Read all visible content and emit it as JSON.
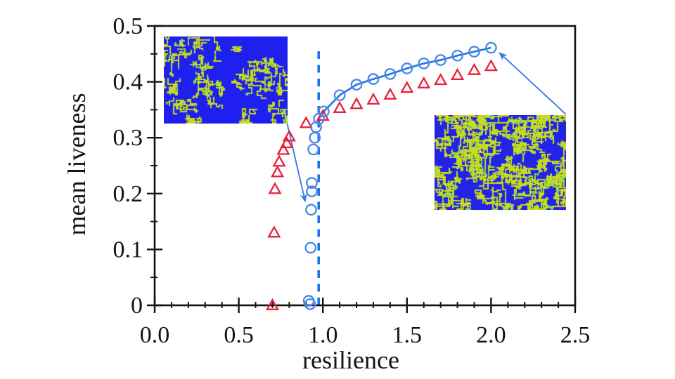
{
  "chart_data": {
    "type": "scatter",
    "title": "",
    "xlabel": "resilience",
    "ylabel": "mean liveness",
    "xlim": [
      0,
      2.5
    ],
    "ylim": [
      0,
      0.5
    ],
    "x_tick_values": [
      0,
      0.5,
      1.0,
      1.5,
      2.0,
      2.5
    ],
    "x_tick_labels": [
      "0.0",
      "0.5",
      "1.0",
      "1.5",
      "2.0",
      "2.5"
    ],
    "x_minor_tick_step": 0.1,
    "y_tick_values": [
      0,
      0.1,
      0.2,
      0.3,
      0.4,
      0.5
    ],
    "y_tick_labels": [
      "0",
      "0.1",
      "0.2",
      "0.3",
      "0.4",
      "0.5"
    ],
    "y_minor_tick_step": 0.05,
    "grid": false,
    "legend": "none",
    "axis_color": "#141414",
    "series": [
      {
        "name": "red-triangles",
        "marker": "open-triangle",
        "color": "#E8203A",
        "connected": false,
        "points": [
          [
            0.7,
            0.0
          ],
          [
            0.71,
            0.13
          ],
          [
            0.715,
            0.208
          ],
          [
            0.73,
            0.238
          ],
          [
            0.74,
            0.257
          ],
          [
            0.765,
            0.278
          ],
          [
            0.785,
            0.29
          ],
          [
            0.8,
            0.302
          ],
          [
            0.9,
            0.326
          ],
          [
            1.0,
            0.339
          ],
          [
            1.1,
            0.353
          ],
          [
            1.2,
            0.36
          ],
          [
            1.3,
            0.368
          ],
          [
            1.4,
            0.377
          ],
          [
            1.5,
            0.389
          ],
          [
            1.6,
            0.397
          ],
          [
            1.7,
            0.403
          ],
          [
            1.8,
            0.412
          ],
          [
            1.9,
            0.421
          ],
          [
            2.0,
            0.428
          ]
        ]
      },
      {
        "name": "blue-circles-collapsing-branch",
        "marker": "open-circle",
        "color": "#4A86E8",
        "connected": false,
        "points": [
          [
            0.96,
            0.319
          ],
          [
            0.952,
            0.3
          ],
          [
            0.943,
            0.279
          ],
          [
            0.934,
            0.219
          ],
          [
            0.934,
            0.204
          ],
          [
            0.93,
            0.171
          ],
          [
            0.927,
            0.103
          ],
          [
            0.916,
            0.008
          ],
          [
            0.924,
            0.002
          ]
        ]
      },
      {
        "name": "blue-circles-upper-branch",
        "marker": "open-circle",
        "color": "#4A86E8",
        "line_color": "#1B74E8",
        "connected": true,
        "points": [
          [
            0.977,
            0.334
          ],
          [
            1.005,
            0.347
          ],
          [
            1.1,
            0.376
          ],
          [
            1.2,
            0.395
          ],
          [
            1.3,
            0.405
          ],
          [
            1.4,
            0.414
          ],
          [
            1.5,
            0.424
          ],
          [
            1.6,
            0.433
          ],
          [
            1.7,
            0.439
          ],
          [
            1.8,
            0.447
          ],
          [
            1.9,
            0.454
          ],
          [
            2.0,
            0.461
          ]
        ]
      }
    ],
    "vline": {
      "x": 0.975,
      "y_from": 0,
      "y_to": 0.459,
      "style": "dashed",
      "color": "#1B74E8"
    },
    "arrows": [
      {
        "name": "arrow-inset1-to-collapse-point",
        "from_xy": [
          0.787,
          0.326
        ],
        "to_xy": [
          0.895,
          0.186
        ],
        "color": "#3B7BE8"
      },
      {
        "name": "arrow-inset2-to-peak-point",
        "from_xy": [
          2.445,
          0.342
        ],
        "to_xy": [
          2.05,
          0.452
        ],
        "color": "#3B7BE8"
      }
    ],
    "insets": [
      {
        "name": "inset-low-liveness-snapshot",
        "description": "sparse yellow-green clusters on blue field",
        "x_range": [
          0.055,
          0.79
        ],
        "y_range": [
          0.325,
          0.481
        ],
        "base_color": "#1F1FF0",
        "speckle_color": "#C6DA1E",
        "accent_color": "#35C89B",
        "speckle_coverage": 0.22
      },
      {
        "name": "inset-high-liveness-snapshot",
        "description": "dense yellow-green maze pattern on blue",
        "x_range": [
          1.665,
          2.445
        ],
        "y_range": [
          0.172,
          0.341
        ],
        "base_color": "#2323E8",
        "speckle_color": "#C6DA1E",
        "accent_color": "#35C89B",
        "speckle_coverage": 0.58
      }
    ]
  }
}
